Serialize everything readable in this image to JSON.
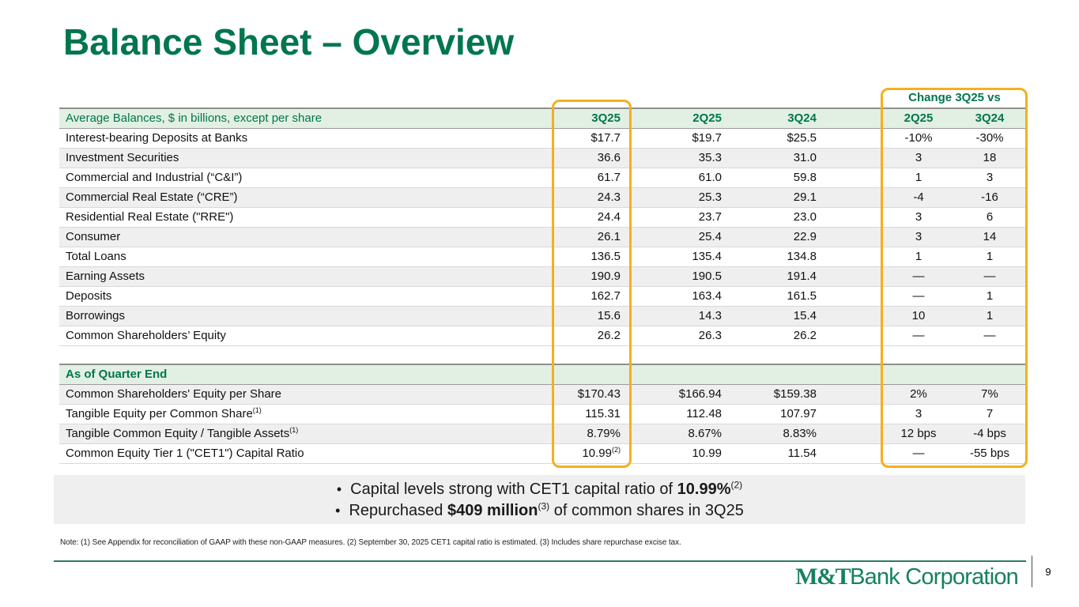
{
  "slide": {
    "title": "Balance Sheet – Overview"
  },
  "colors": {
    "green": "#00764E",
    "light_green": "#E2F0E3",
    "stripe_gray": "#EFEFEF",
    "highlight_yellow": "#F5AF1E",
    "logo_green": "#15825D"
  },
  "table": {
    "change_header": "Change 3Q25 vs",
    "columns": [
      "3Q25",
      "2Q25",
      "3Q24",
      "2Q25",
      "3Q24"
    ],
    "section1": {
      "header": "Average Balances, $ in billions, except per share",
      "rows": [
        {
          "label": "Interest-bearing Deposits at Banks",
          "values": [
            "$17.7",
            "$19.7",
            "$25.5",
            "-10%",
            "-30%"
          ]
        },
        {
          "label": "Investment Securities",
          "values": [
            "36.6",
            "35.3",
            "31.0",
            "3",
            "18"
          ]
        },
        {
          "label": "Commercial and Industrial (“C&I”)",
          "values": [
            "61.7",
            "61.0",
            "59.8",
            "1",
            "3"
          ]
        },
        {
          "label": "Commercial Real Estate (“CRE”)",
          "values": [
            "24.3",
            "25.3",
            "29.1",
            "-4",
            "-16"
          ]
        },
        {
          "label": "Residential Real Estate (\"RRE\")",
          "values": [
            "24.4",
            "23.7",
            "23.0",
            "3",
            "6"
          ]
        },
        {
          "label": "Consumer",
          "values": [
            "26.1",
            "25.4",
            "22.9",
            "3",
            "14"
          ]
        },
        {
          "label": "Total Loans",
          "values": [
            "136.5",
            "135.4",
            "134.8",
            "1",
            "1"
          ]
        },
        {
          "label": "Earning Assets",
          "values": [
            "190.9",
            "190.5",
            "191.4",
            "—",
            "—"
          ]
        },
        {
          "label": "Deposits",
          "values": [
            "162.7",
            "163.4",
            "161.5",
            "—",
            "1"
          ]
        },
        {
          "label": "Borrowings",
          "values": [
            "15.6",
            "14.3",
            "15.4",
            "10",
            "1"
          ]
        },
        {
          "label": "Common Shareholders’ Equity",
          "values": [
            "26.2",
            "26.3",
            "26.2",
            "—",
            "—"
          ]
        }
      ]
    },
    "section2": {
      "header": "As of Quarter End",
      "rows": [
        {
          "label": "Common Shareholders' Equity per Share",
          "values": [
            "$170.43",
            "$166.94",
            "$159.38",
            "2%",
            "7%"
          ]
        },
        {
          "label": "Tangible Equity per Common Share",
          "label_sup": "(1)",
          "values": [
            "115.31",
            "112.48",
            "107.97",
            "3",
            "7"
          ]
        },
        {
          "label": "Tangible Common Equity / Tangible Assets",
          "label_sup": "(1)",
          "values": [
            "8.79%",
            "8.67%",
            "8.83%",
            "12 bps",
            "-4 bps"
          ]
        },
        {
          "label": "Common Equity Tier 1 (\"CET1\") Capital Ratio",
          "v0_sup": "(2)",
          "values": [
            "10.99",
            "10.99",
            "11.54",
            "—",
            "-55 bps"
          ]
        }
      ]
    }
  },
  "bullets": [
    {
      "pre": "Capital levels strong with CET1 capital ratio of ",
      "bold": "10.99%",
      "sup": "(2)",
      "post": ""
    },
    {
      "pre": "Repurchased ",
      "bold": "$409 million",
      "sup": "(3)",
      "post": " of common shares in 3Q25"
    }
  ],
  "note": "Note: (1) See Appendix for reconciliation of GAAP with these non-GAAP measures. (2) September 30, 2025 CET1 capital ratio is estimated. (3) Includes share repurchase excise tax.",
  "footer": {
    "logo_bold": "M&T",
    "logo_rest": "Bank Corporation",
    "page_number": "9"
  }
}
